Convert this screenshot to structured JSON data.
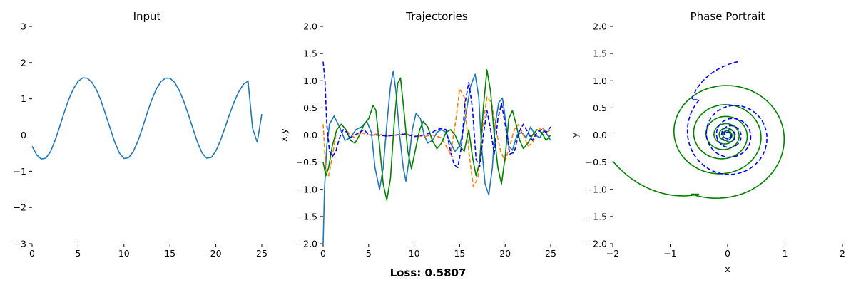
{
  "figure": {
    "loss_text": "Loss: 0.5807"
  },
  "chart_data": [
    {
      "type": "line",
      "title": "Input",
      "xlabel": "",
      "ylabel": "",
      "xlim": [
        0,
        25
      ],
      "ylim": [
        -3,
        3
      ],
      "xticks": [
        0,
        5,
        10,
        15,
        20,
        25
      ],
      "yticks": [
        -3,
        -2,
        -1,
        0,
        1,
        2,
        3
      ],
      "series": [
        {
          "color": "#1f77b4",
          "dash": "solid",
          "x": [
            0,
            0.5,
            1.0,
            1.5,
            2.0,
            2.5,
            3.0,
            3.5,
            4.0,
            4.5,
            5.0,
            5.5,
            6.0,
            6.5,
            7.0,
            7.5,
            8.0,
            8.5,
            9.0,
            9.5,
            10.0,
            10.5,
            11.0,
            11.5,
            12.0,
            12.5,
            13.0,
            13.5,
            14.0,
            14.5,
            15.0,
            15.5,
            16.0,
            16.5,
            17.0,
            17.5,
            18.0,
            18.5,
            19.0,
            19.5,
            20.0,
            20.5,
            21.0,
            21.5,
            22.0,
            22.5,
            23.0,
            23.5,
            24.0,
            24.5,
            25.0
          ],
          "y": [
            -0.31,
            -0.55,
            -0.66,
            -0.64,
            -0.46,
            -0.15,
            0.23,
            0.63,
            0.99,
            1.28,
            1.48,
            1.58,
            1.57,
            1.46,
            1.25,
            0.95,
            0.57,
            0.18,
            -0.2,
            -0.5,
            -0.65,
            -0.63,
            -0.46,
            -0.18,
            0.19,
            0.59,
            0.96,
            1.26,
            1.47,
            1.57,
            1.57,
            1.46,
            1.24,
            0.94,
            0.57,
            0.18,
            -0.2,
            -0.5,
            -0.64,
            -0.62,
            -0.44,
            -0.15,
            0.21,
            0.58,
            0.92,
            1.2,
            1.4,
            1.49,
            0.18,
            -0.2,
            0.58
          ]
        }
      ]
    },
    {
      "type": "line",
      "title": "Trajectories",
      "xlabel": "",
      "ylabel": "x,y",
      "xlim": [
        0,
        25
      ],
      "ylim": [
        -2,
        2
      ],
      "xticks": [
        0,
        5,
        10,
        15,
        20,
        25
      ],
      "yticks": [
        -2.0,
        -1.5,
        -1.0,
        -0.5,
        0.0,
        0.5,
        1.0,
        1.5,
        2.0
      ],
      "series": [
        {
          "color": "#1f77b4",
          "dash": "solid",
          "x": [
            0,
            0.15,
            0.4,
            0.7,
            1.2,
            1.8,
            2.4,
            3.0,
            3.6,
            4.2,
            4.8,
            5.3,
            5.7,
            6.2,
            6.6,
            7.0,
            7.4,
            7.7,
            8.0,
            8.4,
            8.8,
            9.1,
            9.4,
            9.8,
            10.2,
            10.7,
            11.1,
            11.5,
            12.0,
            12.5,
            13.0,
            13.5,
            14.0,
            14.5,
            15.0,
            15.4,
            15.8,
            16.2,
            16.7,
            17.1,
            17.4,
            17.8,
            18.2,
            18.6,
            18.9,
            19.3,
            19.7,
            20.1,
            20.4,
            20.8,
            21.3,
            21.8,
            22.3,
            22.8,
            23.3,
            23.8,
            24.3,
            25.0
          ],
          "y": [
            -2.0,
            -1.0,
            -0.2,
            0.2,
            0.35,
            0.15,
            -0.1,
            -0.05,
            0.1,
            0.15,
            0.25,
            0.05,
            -0.6,
            -1.0,
            -0.6,
            0.2,
            0.9,
            1.18,
            0.8,
            0.0,
            -0.6,
            -0.85,
            -0.5,
            0.1,
            0.4,
            0.3,
            0.0,
            -0.15,
            -0.1,
            0.05,
            0.1,
            0.05,
            -0.15,
            -0.3,
            -0.2,
            0.1,
            0.5,
            0.9,
            1.12,
            0.7,
            -0.2,
            -0.9,
            -1.1,
            -0.6,
            0.2,
            0.6,
            0.68,
            0.2,
            -0.2,
            -0.28,
            0.0,
            0.05,
            -0.05,
            0.15,
            0.0,
            -0.05,
            0.1,
            -0.1
          ]
        },
        {
          "color": "#ff7f0e",
          "dash": "dashed",
          "x": [
            0,
            0.3,
            0.6,
            1.0,
            1.5,
            2.0,
            2.5,
            3.0,
            3.5,
            4.0,
            5.0,
            6.0,
            7.0,
            8.0,
            9.0,
            10.0,
            11.0,
            12.0,
            13.0,
            14.0,
            14.6,
            15.0,
            15.5,
            16.0,
            16.5,
            17.0,
            17.5,
            18.0,
            18.5,
            19.0,
            19.5,
            20.0,
            20.5,
            21.0,
            21.5,
            22.0,
            22.5,
            23.0,
            23.5,
            24.0,
            24.5,
            25.0
          ],
          "y": [
            0.2,
            -0.65,
            -0.75,
            -0.4,
            0.1,
            0.2,
            0.1,
            0.0,
            -0.05,
            0.05,
            0.0,
            0.02,
            -0.02,
            0.0,
            0.02,
            0.0,
            -0.03,
            0.0,
            -0.05,
            -0.35,
            0.3,
            0.85,
            0.7,
            -0.3,
            -0.95,
            -0.8,
            0.1,
            0.7,
            0.6,
            0.1,
            -0.3,
            -0.48,
            -0.2,
            0.1,
            0.2,
            0.0,
            -0.2,
            -0.15,
            0.05,
            0.15,
            0.05,
            0.1
          ]
        },
        {
          "color": "#008000",
          "dash": "solid",
          "x": [
            0,
            0.3,
            0.6,
            1.0,
            1.5,
            2.0,
            2.5,
            3.0,
            3.5,
            4.0,
            4.5,
            5.0,
            5.5,
            5.8,
            6.2,
            6.6,
            7.0,
            7.4,
            7.8,
            8.2,
            8.5,
            8.9,
            9.3,
            9.7,
            10.1,
            10.6,
            11.0,
            11.5,
            12.0,
            12.5,
            13.0,
            13.5,
            14.0,
            14.5,
            15.0,
            15.5,
            16.0,
            16.4,
            16.8,
            17.2,
            17.6,
            18.0,
            18.4,
            18.8,
            19.2,
            19.6,
            20.0,
            20.4,
            20.8,
            21.2,
            21.6,
            22.0,
            22.5,
            23.0,
            23.5,
            24.0,
            24.5,
            25.0
          ],
          "y": [
            -0.5,
            -0.75,
            -0.6,
            -0.2,
            0.1,
            0.2,
            0.1,
            -0.1,
            -0.15,
            0.0,
            0.2,
            0.3,
            0.55,
            0.45,
            -0.2,
            -0.9,
            -1.2,
            -0.8,
            0.2,
            0.95,
            1.05,
            0.4,
            -0.3,
            -0.62,
            -0.3,
            0.1,
            0.25,
            0.15,
            -0.1,
            -0.25,
            -0.15,
            0.05,
            0.1,
            0.0,
            -0.2,
            -0.3,
            0.1,
            -0.4,
            -0.75,
            -0.5,
            0.5,
            1.2,
            0.8,
            0.0,
            -0.6,
            -0.9,
            -0.4,
            0.3,
            0.45,
            0.2,
            -0.1,
            -0.25,
            -0.15,
            0.0,
            0.1,
            0.05,
            -0.1,
            0.0
          ]
        },
        {
          "color": "#0000ff",
          "dash": "dashed",
          "x": [
            0,
            0.2,
            0.4,
            0.7,
            1.0,
            1.4,
            1.8,
            2.2,
            2.6,
            3.0,
            3.5,
            4.0,
            4.5,
            5.0,
            6.0,
            7.0,
            8.0,
            9.0,
            10.0,
            11.0,
            12.0,
            12.5,
            13.0,
            13.5,
            14.0,
            14.4,
            14.8,
            15.2,
            15.6,
            16.0,
            16.4,
            16.8,
            17.2,
            17.6,
            18.0,
            18.4,
            18.8,
            19.2,
            19.6,
            20.0,
            20.5,
            21.0,
            21.5,
            22.0,
            22.5,
            23.0,
            23.5,
            24.0,
            24.5,
            25.0
          ],
          "y": [
            1.35,
            1.0,
            0.2,
            -0.3,
            -0.4,
            -0.3,
            -0.05,
            0.1,
            0.05,
            -0.05,
            0.0,
            0.05,
            0.1,
            0.0,
            0.0,
            -0.02,
            0.0,
            0.02,
            -0.03,
            0.0,
            0.05,
            0.1,
            0.12,
            0.1,
            -0.3,
            -0.55,
            -0.6,
            -0.2,
            0.6,
            0.97,
            0.5,
            -0.45,
            -0.58,
            0.0,
            0.45,
            0.1,
            -0.35,
            0.3,
            0.58,
            0.2,
            -0.35,
            -0.32,
            0.05,
            0.2,
            0.05,
            -0.1,
            0.05,
            0.1,
            0.05,
            0.15
          ]
        }
      ]
    },
    {
      "type": "line",
      "title": "Phase Portrait",
      "xlabel": "x",
      "ylabel": "y",
      "xlim": [
        -2,
        2
      ],
      "ylim": [
        -2,
        2
      ],
      "xticks": [
        -2,
        -1,
        0,
        1,
        2
      ],
      "yticks": [
        -2.0,
        -1.5,
        -1.0,
        -0.5,
        0.0,
        0.5,
        1.0,
        1.5,
        2.0
      ],
      "series": [
        {
          "color": "#008000",
          "dash": "solid",
          "kind": "spiral",
          "start": [
            -2.0,
            -0.48
          ],
          "center": [
            0.0,
            0.0
          ],
          "r_start": 1.2,
          "r_end": 0.05,
          "turns": 6.5
        },
        {
          "color": "#0000ff",
          "dash": "dashed",
          "kind": "spiral",
          "start": [
            0.18,
            1.35
          ],
          "center": [
            0.0,
            0.0
          ],
          "r_start": 0.9,
          "r_end": 0.05,
          "turns": 5
        }
      ]
    }
  ]
}
